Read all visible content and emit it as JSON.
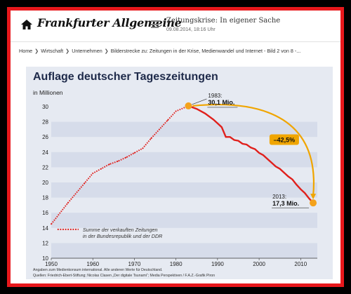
{
  "header": {
    "logo": "Frankfurter Allgemeine",
    "title": "Zeitungskrise: In eigener Sache",
    "date": "09.08.2014, 18:16 Uhr",
    "home_icon": "home-icon",
    "menu_icon": "hamburger-menu-icon"
  },
  "breadcrumb": {
    "items": [
      "Home",
      "Wirtschaft",
      "Unternehmen"
    ],
    "current": "Bilderstrecke zu: Zeitungen in der Krise, Medienwandel und Internet - Bild 2 von 8 -..."
  },
  "colors": {
    "frame": "#e8181c",
    "line": "#e0201c",
    "arrow": "#f0a500",
    "marker": "#f4a21c",
    "panel": "#e6eaf2",
    "band": "#d6dcea"
  },
  "chart_data": {
    "type": "line",
    "title": "Auflage deutscher Tageszeitungen",
    "ylabel": "in Millionen",
    "xlabel": "",
    "xlim": [
      1950,
      2014
    ],
    "ylim": [
      10,
      30
    ],
    "xticks": [
      1950,
      1960,
      1970,
      1980,
      1990,
      2000,
      2010
    ],
    "yticks": [
      10,
      12,
      14,
      16,
      18,
      20,
      22,
      24,
      26,
      28,
      30
    ],
    "grid": "horizontal bands",
    "legend": "Summe der verkauften Zeitungen in der Bundesrepublik und der DDR",
    "legend_lines": [
      "Summe der verkauften Zeitungen",
      "in der Bundesrepublik und der DDR"
    ],
    "series": [
      {
        "name": "Summe der verkauften Zeitungen in der Bundesrepublik und der DDR",
        "x": [
          1950,
          1954,
          1958,
          1960,
          1962,
          1964,
          1966,
          1968,
          1970,
          1972,
          1974,
          1976,
          1978,
          1980,
          1983,
          1985,
          1987,
          1989,
          1990,
          1991,
          1992,
          1993,
          1994,
          1995,
          1996,
          1997,
          1998,
          1999,
          2000,
          2001,
          2002,
          2003,
          2004,
          2005,
          2006,
          2007,
          2008,
          2009,
          2010,
          2011,
          2012,
          2013
        ],
        "values": [
          14.5,
          17.3,
          19.9,
          21.2,
          21.8,
          22.4,
          22.8,
          23.3,
          23.9,
          24.5,
          25.8,
          27.0,
          28.2,
          29.4,
          30.1,
          29.7,
          29.1,
          28.3,
          27.8,
          27.3,
          26.0,
          26.0,
          25.6,
          25.5,
          25.1,
          25.0,
          24.6,
          24.4,
          23.9,
          23.6,
          23.1,
          22.6,
          22.1,
          21.8,
          21.3,
          20.8,
          20.4,
          19.7,
          19.1,
          18.6,
          17.9,
          17.3
        ]
      }
    ],
    "annotations": [
      {
        "year": "1983:",
        "value": "30,1 Mio."
      },
      {
        "year": "2013:",
        "value": "17,3 Mio."
      },
      {
        "change": "–42,5%"
      }
    ],
    "note": "Angaben zum Medienkonsum international. Alle anderen Werte für Deutschland.",
    "source": "Quellen: Friedrich-Ebert-Stiftung; Nicolas Clasen „Der digitale Tsunami“; Media Perspektiven / F.A.Z.-Grafik Piron"
  }
}
